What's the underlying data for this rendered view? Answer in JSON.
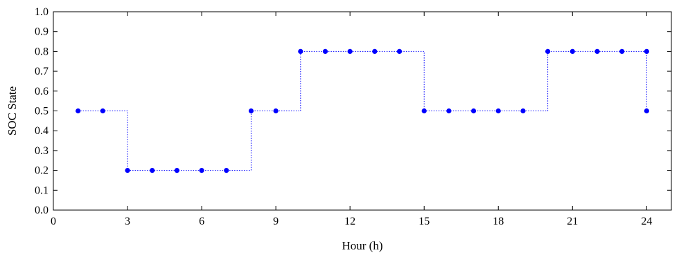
{
  "chart_data": {
    "type": "line",
    "xlabel": "Hour (h)",
    "ylabel": "SOC State",
    "xlim": [
      0,
      25
    ],
    "ylim": [
      0,
      1
    ],
    "xticks": [
      0,
      3,
      6,
      9,
      12,
      15,
      18,
      21,
      24
    ],
    "xtick_labels": [
      "0",
      "3",
      "6",
      "9",
      "12",
      "15",
      "18",
      "21",
      "24"
    ],
    "yticks": [
      0,
      0.1,
      0.2,
      0.3,
      0.4,
      0.5,
      0.6,
      0.7,
      0.8,
      0.9,
      1.0
    ],
    "ytick_labels": [
      "0.0",
      "0.1",
      "0.2",
      "0.3",
      "0.4",
      "0.5",
      "0.6",
      "0.7",
      "0.8",
      "0.9",
      "1.0"
    ],
    "grid": false,
    "line_style": "step-dotted",
    "series": [
      {
        "color": "#0000ff",
        "x": [
          1,
          2,
          3,
          4,
          5,
          6,
          7,
          8,
          9,
          10,
          11,
          12,
          13,
          14,
          15,
          16,
          17,
          18,
          19,
          20,
          21,
          22,
          23,
          24
        ],
        "y": [
          0.5,
          0.5,
          0.2,
          0.2,
          0.2,
          0.2,
          0.2,
          0.5,
          0.5,
          0.8,
          0.8,
          0.8,
          0.8,
          0.8,
          0.5,
          0.5,
          0.5,
          0.5,
          0.5,
          0.8,
          0.8,
          0.8,
          0.8,
          0.8
        ],
        "y_end": 0.5
      }
    ]
  }
}
